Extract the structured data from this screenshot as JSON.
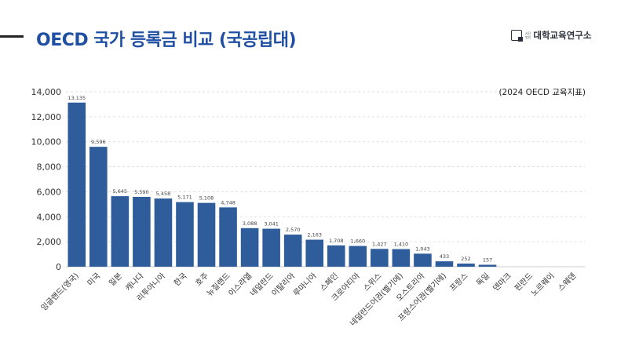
{
  "header": {
    "title": "OECD 국가 등록금 비교 (국공립대)",
    "logo_small_top": "사단",
    "logo_small_bottom": "법인",
    "logo_name": "대학교육연구소",
    "logo_icon": "square-logo-icon"
  },
  "chart_data": {
    "type": "bar",
    "title": "",
    "xlabel": "",
    "ylabel": "",
    "annotation": "(2024 OECD 교육지표)",
    "ylim": [
      0,
      14000
    ],
    "yticks": [
      "0",
      "2,000",
      "4,000",
      "6,000",
      "8,000",
      "10,000",
      "12,000",
      "14,000"
    ],
    "ytick_values": [
      0,
      2000,
      4000,
      6000,
      8000,
      10000,
      12000,
      14000
    ],
    "grid": true,
    "legend": "none",
    "bar_color": "#2f5d9b",
    "categories": [
      "잉글랜드(영국)",
      "미국",
      "일본",
      "캐나다",
      "리투아니아",
      "한국",
      "호주",
      "뉴질랜드",
      "이스라엘",
      "네덜란드",
      "이탈리아",
      "루마니아",
      "스페인",
      "크로아티아",
      "스위스",
      "네덜란드어권(벨기에)",
      "오스트리아",
      "프랑스어권(벨기에)",
      "프랑스",
      "독일",
      "덴마크",
      "핀란드",
      "노르웨이",
      "스웨덴"
    ],
    "values": [
      13135,
      9596,
      5645,
      5590,
      5458,
      5171,
      5108,
      4748,
      3088,
      3041,
      2570,
      2163,
      1708,
      1660,
      1427,
      1410,
      1043,
      433,
      252,
      157,
      0,
      0,
      0,
      0
    ],
    "value_labels": [
      "13,135",
      "9,596",
      "5,645",
      "5,590",
      "5,458",
      "5,171",
      "5,108",
      "4,748",
      "3,088",
      "3,041",
      "2,570",
      "2,163",
      "1,708",
      "1,660",
      "1,427",
      "1,410",
      "1,043",
      "433",
      "252",
      "157",
      "",
      "",
      "",
      ""
    ]
  }
}
